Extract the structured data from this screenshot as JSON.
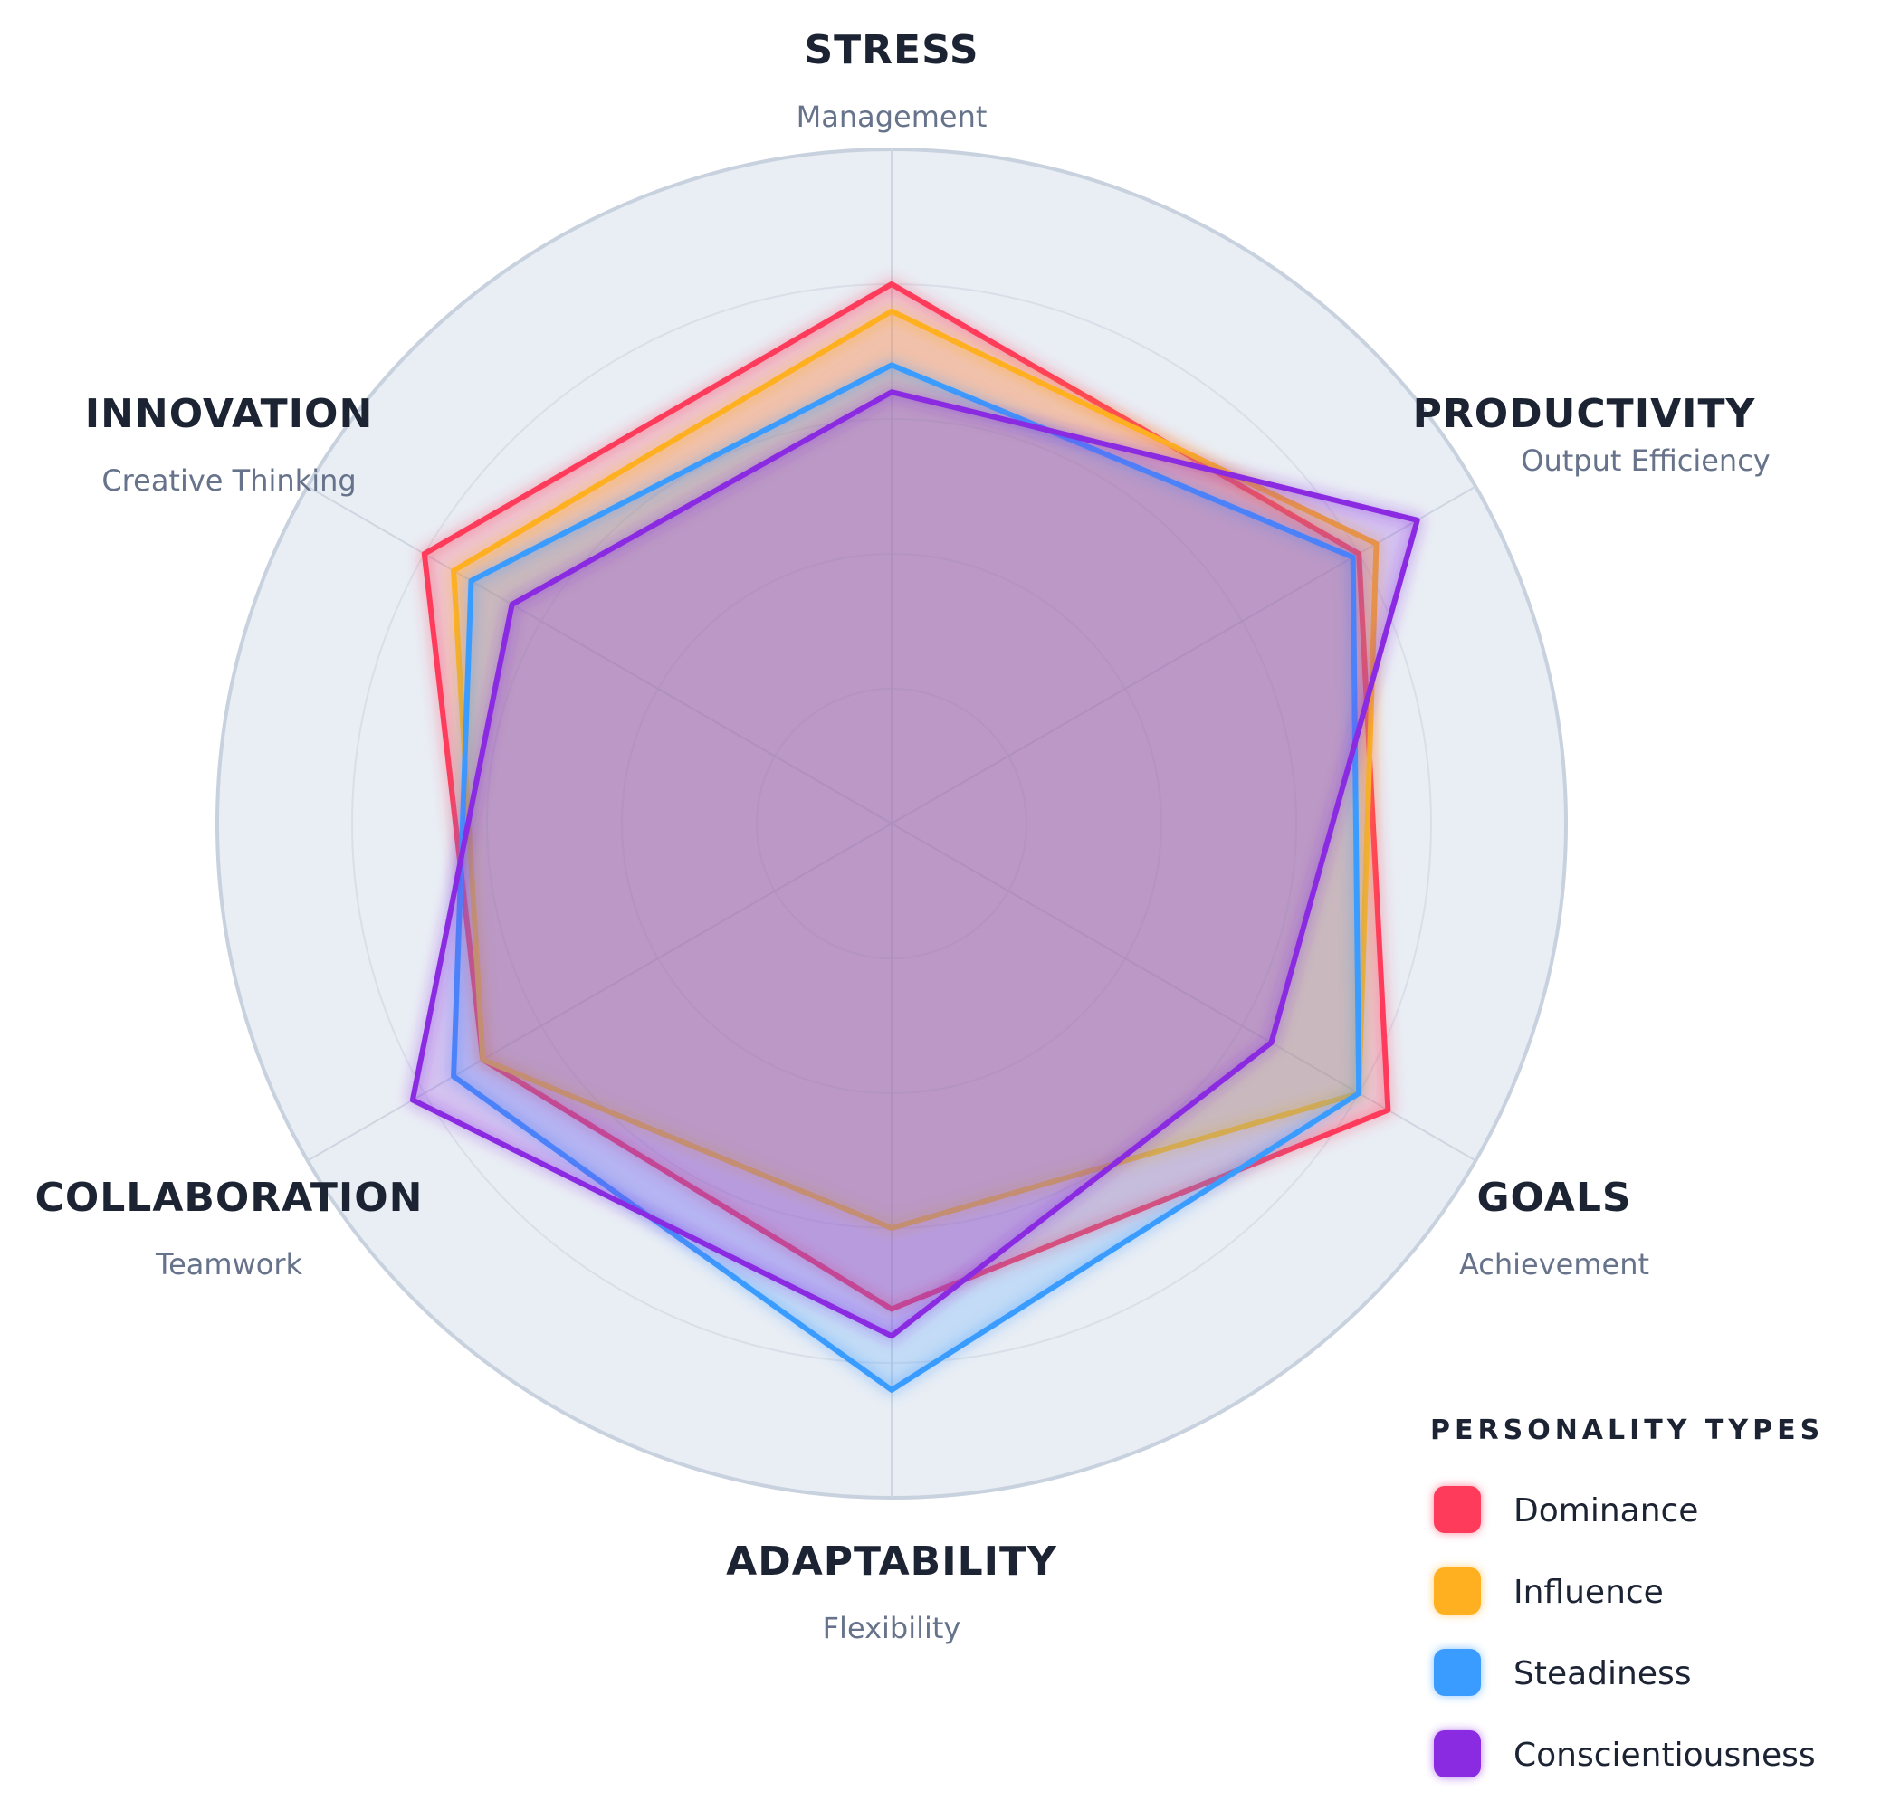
{
  "chart_data": {
    "type": "radar",
    "axes": [
      {
        "label": "STRESS",
        "sublabel": "Management"
      },
      {
        "label": "PRODUCTIVITY",
        "sublabel": "Output Efficiency"
      },
      {
        "label": "GOALS",
        "sublabel": "Achievement"
      },
      {
        "label": "ADAPTABILITY",
        "sublabel": "Flexibility"
      },
      {
        "label": "COLLABORATION",
        "sublabel": "Teamwork"
      },
      {
        "label": "INNOVATION",
        "sublabel": "Creative Thinking"
      }
    ],
    "range": [
      0,
      100
    ],
    "grid_rings": [
      20,
      40,
      60,
      80,
      100
    ],
    "series": [
      {
        "name": "Dominance",
        "color": "#ff3b5c",
        "values": [
          80,
          80,
          85,
          72,
          70,
          80
        ]
      },
      {
        "name": "Influence",
        "color": "#ffb020",
        "values": [
          76,
          83,
          80,
          60,
          70,
          75
        ]
      },
      {
        "name": "Steadiness",
        "color": "#3b9cff",
        "values": [
          68,
          79,
          80,
          84,
          75,
          72
        ]
      },
      {
        "name": "Conscientiousness",
        "color": "#8a2be2",
        "values": [
          64,
          90,
          65,
          76,
          82,
          65
        ]
      }
    ],
    "legend": {
      "title": "PERSONALITY TYPES",
      "position": "bottom-right"
    }
  }
}
